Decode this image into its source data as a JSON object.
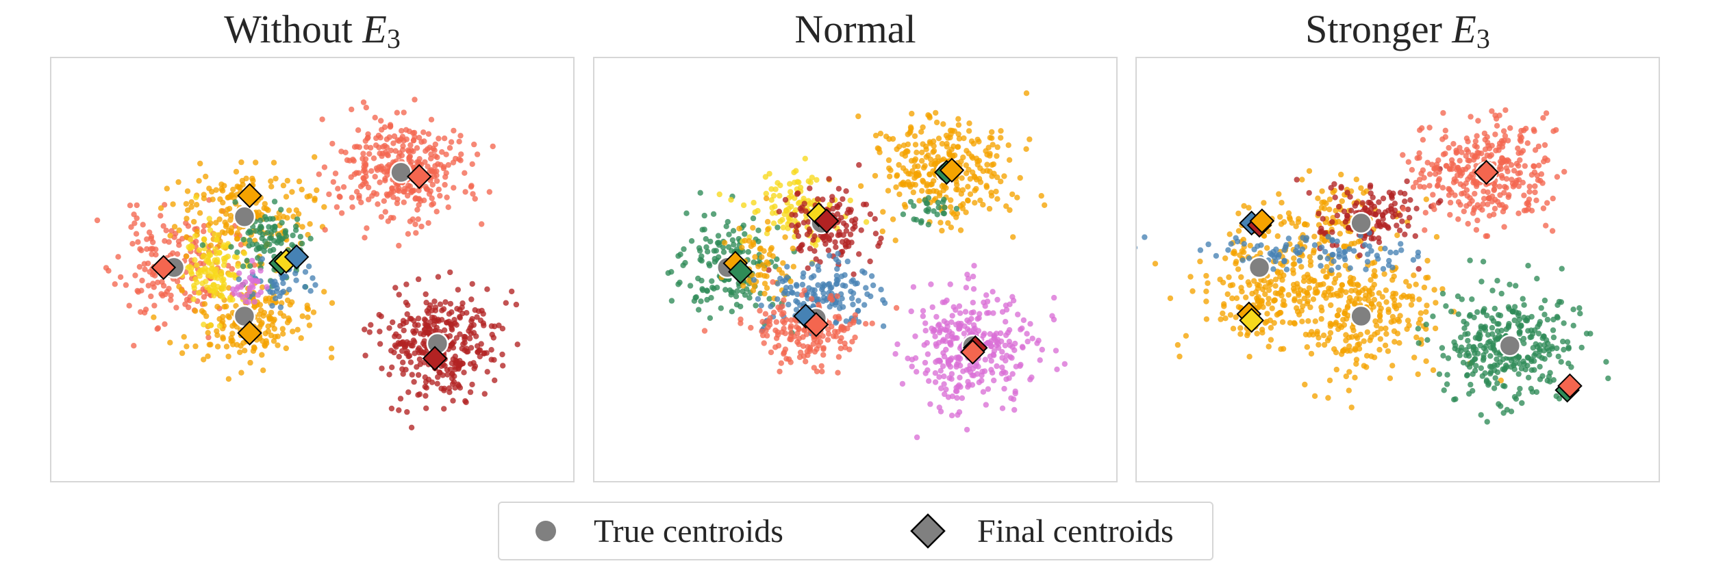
{
  "chart_data": {
    "type": "scatter",
    "colors": {
      "salmon": "#f4664f",
      "orange": "#f5a300",
      "green": "#2e8b57",
      "steelblue": "#4682b4",
      "gold": "#f7d91c",
      "orchid": "#da70d6",
      "firebrick": "#b22222",
      "centroid": "#808080"
    },
    "legend": {
      "placement": "bottom-center",
      "entries": [
        {
          "label": "True centroids",
          "marker": "circle",
          "color": "#808080"
        },
        {
          "label": "Final centroids",
          "marker": "diamond",
          "color": "#808080"
        }
      ]
    },
    "panels": [
      {
        "title": "Without ",
        "title_math": "E",
        "title_sub": "3",
        "xlim": [
          -10,
          10
        ],
        "ylim": [
          -10,
          10
        ],
        "true_centroids": [
          [
            -5.3,
            0.1
          ],
          [
            -2.6,
            2.5
          ],
          [
            -2.6,
            -2.2
          ],
          [
            3.4,
            4.6
          ],
          [
            4.8,
            -3.5
          ]
        ],
        "clusters": [
          {
            "color": "salmon",
            "cx": -5.3,
            "cy": 0.1,
            "sx": 1.1,
            "sy": 1.3,
            "n": 170,
            "seed": 11
          },
          {
            "color": "orange",
            "cx": -2.6,
            "cy": 2.7,
            "sx": 1.3,
            "sy": 1.0,
            "n": 180,
            "seed": 12
          },
          {
            "color": "orange",
            "cx": -2.6,
            "cy": -2.4,
            "sx": 1.3,
            "sy": 1.0,
            "n": 180,
            "seed": 13
          },
          {
            "color": "gold",
            "cx": -3.8,
            "cy": 0.1,
            "sx": 0.55,
            "sy": 1.0,
            "n": 120,
            "seed": 14
          },
          {
            "color": "green",
            "cx": -1.6,
            "cy": 1.3,
            "sx": 0.75,
            "sy": 0.9,
            "n": 90,
            "seed": 15
          },
          {
            "color": "steelblue",
            "cx": -1.3,
            "cy": -0.6,
            "sx": 0.7,
            "sy": 0.6,
            "n": 45,
            "seed": 16
          },
          {
            "color": "orchid",
            "cx": -2.5,
            "cy": -0.7,
            "sx": 0.35,
            "sy": 0.55,
            "n": 30,
            "seed": 17
          },
          {
            "color": "salmon",
            "cx": 3.4,
            "cy": 4.6,
            "sx": 1.3,
            "sy": 1.2,
            "n": 330,
            "seed": 18
          },
          {
            "color": "firebrick",
            "cx": 4.8,
            "cy": -3.5,
            "sx": 1.2,
            "sy": 1.3,
            "n": 330,
            "seed": 19
          }
        ],
        "final_centroids": [
          {
            "x": -5.7,
            "y": 0.1,
            "color": "salmon"
          },
          {
            "x": -2.4,
            "y": 3.5,
            "color": "orange"
          },
          {
            "x": -2.4,
            "y": -3.0,
            "color": "orange"
          },
          {
            "x": -1.2,
            "y": 0.3,
            "color": "green"
          },
          {
            "x": -1.0,
            "y": 0.4,
            "color": "gold"
          },
          {
            "x": -0.6,
            "y": 0.6,
            "color": "steelblue"
          },
          {
            "x": 4.1,
            "y": 4.4,
            "color": "salmon"
          },
          {
            "x": 4.7,
            "y": -4.2,
            "color": "firebrick"
          }
        ]
      },
      {
        "title": "Normal",
        "title_math": "",
        "title_sub": "",
        "xlim": [
          -10,
          10
        ],
        "ylim": [
          -10,
          10
        ],
        "true_centroids": [
          [
            -4.9,
            0.1
          ],
          [
            -1.3,
            2.2
          ],
          [
            -1.5,
            -2.3
          ],
          [
            3.5,
            4.6
          ],
          [
            4.5,
            -3.6
          ]
        ],
        "clusters": [
          {
            "color": "green",
            "cx": -4.9,
            "cy": 0.2,
            "sx": 1.0,
            "sy": 1.3,
            "n": 160,
            "seed": 21
          },
          {
            "color": "gold",
            "cx": -2.4,
            "cy": 3.0,
            "sx": 0.9,
            "sy": 0.8,
            "n": 110,
            "seed": 22
          },
          {
            "color": "firebrick",
            "cx": -1.0,
            "cy": 2.0,
            "sx": 0.9,
            "sy": 0.9,
            "n": 130,
            "seed": 23
          },
          {
            "color": "orange",
            "cx": -3.7,
            "cy": 0.2,
            "sx": 0.7,
            "sy": 1.0,
            "n": 60,
            "seed": 24
          },
          {
            "color": "steelblue",
            "cx": -1.4,
            "cy": -1.3,
            "sx": 1.1,
            "sy": 0.8,
            "n": 150,
            "seed": 25
          },
          {
            "color": "salmon",
            "cx": -1.8,
            "cy": -3.0,
            "sx": 1.1,
            "sy": 0.8,
            "n": 170,
            "seed": 26
          },
          {
            "color": "orange",
            "cx": 3.5,
            "cy": 4.6,
            "sx": 1.3,
            "sy": 1.2,
            "n": 300,
            "seed": 27
          },
          {
            "color": "green",
            "cx": 3.0,
            "cy": 2.8,
            "sx": 0.8,
            "sy": 0.3,
            "n": 25,
            "seed": 28
          },
          {
            "color": "orchid",
            "cx": 4.5,
            "cy": -3.6,
            "sx": 1.2,
            "sy": 1.3,
            "n": 320,
            "seed": 29
          }
        ],
        "final_centroids": [
          {
            "x": -4.6,
            "y": 0.3,
            "color": "orange"
          },
          {
            "x": -4.4,
            "y": -0.1,
            "color": "green"
          },
          {
            "x": -1.4,
            "y": 2.6,
            "color": "gold"
          },
          {
            "x": -1.1,
            "y": 2.3,
            "color": "firebrick"
          },
          {
            "x": -1.9,
            "y": -2.2,
            "color": "steelblue"
          },
          {
            "x": -1.5,
            "y": -2.6,
            "color": "salmon"
          },
          {
            "x": 3.5,
            "y": 4.6,
            "color": "green"
          },
          {
            "x": 3.7,
            "y": 4.7,
            "color": "orange"
          },
          {
            "x": 4.6,
            "y": -3.7,
            "color": "firebrick"
          },
          {
            "x": 4.5,
            "y": -3.9,
            "color": "salmon"
          }
        ]
      },
      {
        "title": "Stronger ",
        "title_math": "E",
        "title_sub": "3",
        "xlim": [
          -10,
          10
        ],
        "ylim": [
          -10,
          10
        ],
        "true_centroids": [
          [
            -5.3,
            0.1
          ],
          [
            -1.4,
            2.2
          ],
          [
            -1.4,
            -2.2
          ],
          [
            3.4,
            4.6
          ],
          [
            4.3,
            -3.6
          ]
        ],
        "clusters": [
          {
            "color": "orange",
            "cx": -5.0,
            "cy": -0.8,
            "sx": 1.3,
            "sy": 1.4,
            "n": 200,
            "seed": 31
          },
          {
            "color": "orange",
            "cx": -1.6,
            "cy": -2.0,
            "sx": 1.5,
            "sy": 1.4,
            "n": 300,
            "seed": 32
          },
          {
            "color": "orange",
            "cx": -2.8,
            "cy": 2.3,
            "sx": 1.4,
            "sy": 0.9,
            "n": 120,
            "seed": 33
          },
          {
            "color": "firebrick",
            "cx": -1.2,
            "cy": 2.6,
            "sx": 1.1,
            "sy": 0.9,
            "n": 130,
            "seed": 34
          },
          {
            "color": "steelblue",
            "cx": -3.2,
            "cy": 0.8,
            "sx": 2.2,
            "sy": 0.4,
            "n": 90,
            "seed": 35
          },
          {
            "color": "salmon",
            "cx": 3.4,
            "cy": 4.6,
            "sx": 1.3,
            "sy": 1.2,
            "n": 330,
            "seed": 36
          },
          {
            "color": "green",
            "cx": 4.3,
            "cy": -3.6,
            "sx": 1.3,
            "sy": 1.3,
            "n": 330,
            "seed": 37
          }
        ],
        "final_centroids": [
          {
            "x": -5.6,
            "y": 2.2,
            "color": "steelblue"
          },
          {
            "x": -5.3,
            "y": 2.1,
            "color": "firebrick"
          },
          {
            "x": -5.2,
            "y": 2.3,
            "color": "orange"
          },
          {
            "x": -5.7,
            "y": -2.1,
            "color": "orange"
          },
          {
            "x": -5.6,
            "y": -2.4,
            "color": "gold"
          },
          {
            "x": 3.4,
            "y": 4.6,
            "color": "salmon"
          },
          {
            "x": 6.5,
            "y": -5.7,
            "color": "green"
          },
          {
            "x": 6.6,
            "y": -5.5,
            "color": "salmon"
          }
        ]
      }
    ]
  }
}
